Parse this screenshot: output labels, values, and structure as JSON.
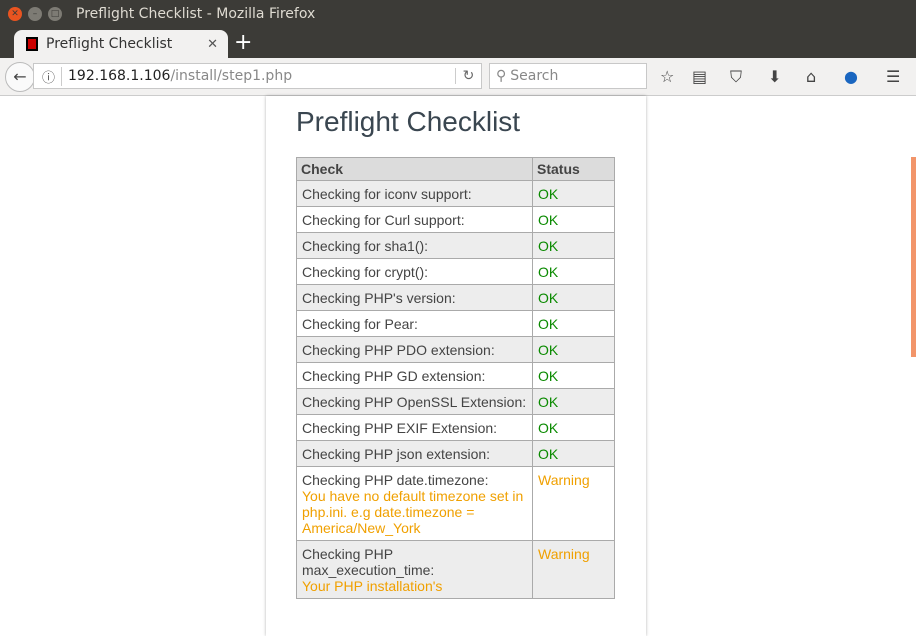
{
  "window": {
    "title": "Preflight Checklist - Mozilla Firefox"
  },
  "tab": {
    "label": "Preflight Checklist"
  },
  "url": {
    "host": "192.168.1.106",
    "path": "/install/step1.php"
  },
  "search": {
    "placeholder": "Search"
  },
  "page": {
    "title": "Preflight Checklist",
    "headers": {
      "check": "Check",
      "status": "Status"
    },
    "rows": [
      {
        "check": "Checking for iconv support:",
        "status": "OK",
        "type": "ok"
      },
      {
        "check": "Checking for Curl support:",
        "status": "OK",
        "type": "ok"
      },
      {
        "check": "Checking for sha1():",
        "status": "OK",
        "type": "ok"
      },
      {
        "check": "Checking for crypt():",
        "status": "OK",
        "type": "ok"
      },
      {
        "check": "Checking PHP's version:",
        "status": "OK",
        "type": "ok"
      },
      {
        "check": "Checking for Pear:",
        "status": "OK",
        "type": "ok"
      },
      {
        "check": "Checking PHP PDO extension:",
        "status": "OK",
        "type": "ok"
      },
      {
        "check": "Checking PHP GD extension:",
        "status": "OK",
        "type": "ok"
      },
      {
        "check": "Checking PHP OpenSSL Extension:",
        "status": "OK",
        "type": "ok"
      },
      {
        "check": "Checking PHP EXIF Extension:",
        "status": "OK",
        "type": "ok"
      },
      {
        "check": "Checking PHP json extension:",
        "status": "OK",
        "type": "ok"
      },
      {
        "check": "Checking PHP date.timezone:",
        "note": "You have no default timezone set in php.ini. e.g date.timezone = America/New_York",
        "status": "Warning",
        "type": "warn"
      },
      {
        "check": "Checking PHP max_execution_time:",
        "note": "Your PHP installation's",
        "status": "Warning",
        "type": "warn"
      }
    ]
  },
  "colors": {
    "ok": "#0a8a00",
    "warning": "#f0a000"
  }
}
